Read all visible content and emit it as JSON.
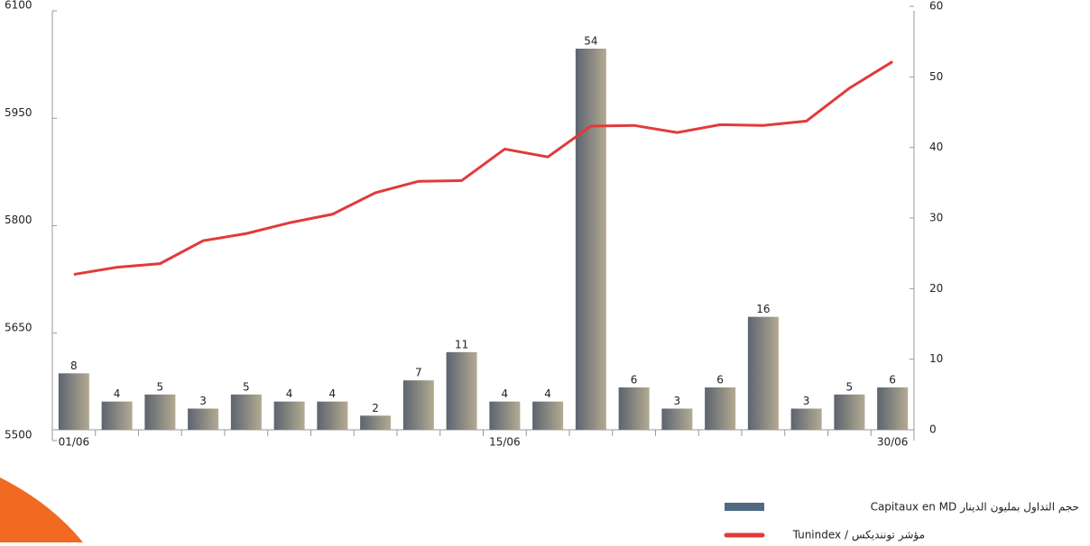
{
  "chart_data": {
    "type": "bar+line",
    "categories": [
      "01/06",
      null,
      null,
      null,
      null,
      null,
      null,
      null,
      null,
      null,
      "15/06",
      null,
      null,
      null,
      null,
      null,
      null,
      null,
      null,
      "30/06"
    ],
    "series": [
      {
        "name": "حجم التداول بمليون الدينار  Capitaux en MD",
        "color": "#4f6a82",
        "type": "bar",
        "axis": "y2",
        "values": [
          8,
          4,
          5,
          3,
          5,
          4,
          4,
          2,
          7,
          11,
          4,
          4,
          54,
          6,
          3,
          6,
          16,
          3,
          5,
          6
        ]
      },
      {
        "name": "مؤشر توننديكس / Tunindex",
        "color": "#e23a3a",
        "type": "line",
        "axis": "y",
        "values": [
          5732,
          5742,
          5747,
          5779,
          5789,
          5804,
          5816,
          5846,
          5862,
          5863,
          5907,
          5896,
          5939,
          5940,
          5930,
          5941,
          5940,
          5946,
          5992,
          6029
        ]
      }
    ],
    "ylim": [
      5500,
      6100
    ],
    "yticks": [
      5500,
      5650,
      5800,
      5950,
      6100
    ],
    "y2lim": [
      0,
      60
    ],
    "y2ticks": [
      0,
      10,
      20,
      30,
      40,
      50,
      60
    ]
  }
}
